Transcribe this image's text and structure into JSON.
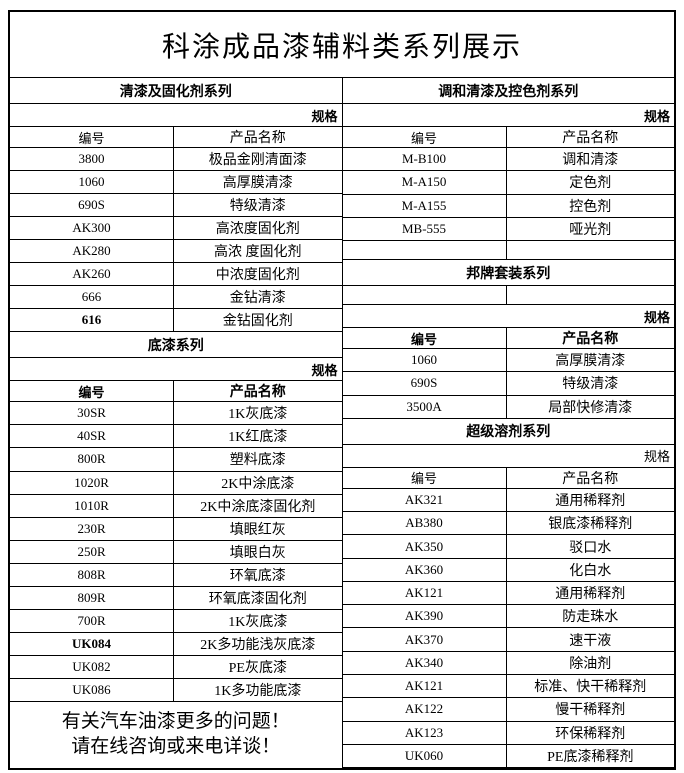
{
  "title": "科涂成品漆辅料类系列展示",
  "labels": {
    "spec": "规格",
    "code": "编号",
    "product": "产品名称"
  },
  "left": {
    "sections": [
      {
        "name": "清漆及固化剂系列",
        "rows": [
          {
            "code": "3800",
            "name": "极品金刚清面漆"
          },
          {
            "code": "1060",
            "name": "高厚膜清漆"
          },
          {
            "code": "690S",
            "name": "特级清漆"
          },
          {
            "code": "AK300",
            "name": "高浓度固化剂"
          },
          {
            "code": "AK280",
            "name": "高浓 度固化剂"
          },
          {
            "code": "AK260",
            "name": "中浓度固化剂"
          },
          {
            "code": "666",
            "name": "金钻清漆"
          },
          {
            "code": "616",
            "name": "金钻固化剂",
            "bold": true
          }
        ]
      },
      {
        "name": "底漆系列",
        "rows": [
          {
            "code": "30SR",
            "name": "1K灰底漆"
          },
          {
            "code": "40SR",
            "name": "1K红底漆"
          },
          {
            "code": "800R",
            "name": "塑料底漆"
          },
          {
            "code": "1020R",
            "name": "2K中涂底漆"
          },
          {
            "code": "1010R",
            "name": "2K中涂底漆固化剂"
          },
          {
            "code": "230R",
            "name": "填眼红灰"
          },
          {
            "code": "250R",
            "name": "填眼白灰"
          },
          {
            "code": "808R",
            "name": "环氧底漆"
          },
          {
            "code": "809R",
            "name": "环氧底漆固化剂"
          },
          {
            "code": "700R",
            "name": "1K灰底漆"
          },
          {
            "code": "UK084",
            "name": "2K多功能浅灰底漆",
            "bold": true
          },
          {
            "code": "UK082",
            "name": "PE灰底漆"
          },
          {
            "code": "UK086",
            "name": "1K多功能底漆"
          }
        ]
      }
    ],
    "footer": {
      "line1": "有关汽车油漆更多的问题！",
      "line2": "请在线咨询或来电详谈！"
    }
  },
  "right": {
    "sections": [
      {
        "name": "调和清漆及控色剂系列",
        "rows": [
          {
            "code": "M-B100",
            "name": "调和清漆"
          },
          {
            "code": "M-A150",
            "name": "定色剂"
          },
          {
            "code": "M-A155",
            "name": "控色剂"
          },
          {
            "code": "MB-555",
            "name": "哑光剂"
          }
        ]
      },
      {
        "name": "邦牌套装系列",
        "rows": [
          {
            "code": "1060",
            "name": "高厚膜清漆"
          },
          {
            "code": "690S",
            "name": "特级清漆"
          },
          {
            "code": "3500A",
            "name": "局部快修清漆"
          }
        ]
      },
      {
        "name": "超级溶剂系列",
        "rows": [
          {
            "code": "AK321",
            "name": "通用稀释剂"
          },
          {
            "code": "AB380",
            "name": "银底漆稀释剂"
          },
          {
            "code": "AK350",
            "name": "驳口水"
          },
          {
            "code": "AK360",
            "name": "化白水"
          },
          {
            "code": "AK121",
            "name": "通用稀释剂"
          },
          {
            "code": "AK390",
            "name": "防走珠水"
          },
          {
            "code": "AK370",
            "name": "速干液"
          },
          {
            "code": "AK340",
            "name": "除油剂"
          },
          {
            "code": "AK121",
            "name": "标准、快干稀释剂"
          },
          {
            "code": "AK122",
            "name": "慢干稀释剂"
          },
          {
            "code": "AK123",
            "name": "环保稀释剂"
          },
          {
            "code": "UK060",
            "name": "PE底漆稀释剂"
          }
        ]
      }
    ]
  }
}
